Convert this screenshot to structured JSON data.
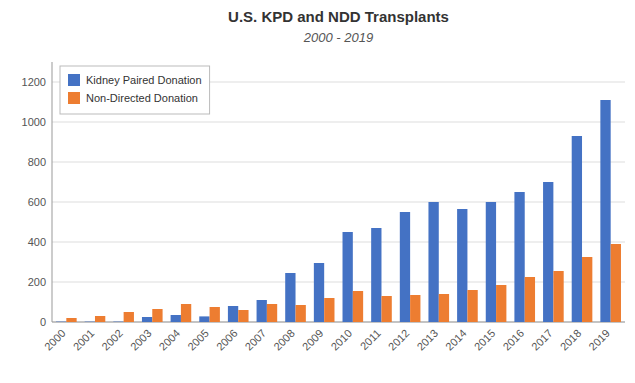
{
  "chart_data": {
    "type": "bar",
    "title": "U.S. KPD and NDD Transplants",
    "subtitle": "2000 - 2019",
    "categories": [
      "2000",
      "2001",
      "2002",
      "2003",
      "2004",
      "2005",
      "2006",
      "2007",
      "2008",
      "2009",
      "2010",
      "2011",
      "2012",
      "2013",
      "2014",
      "2015",
      "2016",
      "2017",
      "2018",
      "2019"
    ],
    "series": [
      {
        "name": "Kidney Paired Donation",
        "color": "#4472C4",
        "values": [
          2,
          2,
          2,
          25,
          35,
          28,
          80,
          110,
          245,
          295,
          450,
          470,
          550,
          600,
          565,
          600,
          650,
          700,
          930,
          1110
        ]
      },
      {
        "name": "Non-Directed Donation",
        "color": "#ED7D31",
        "values": [
          20,
          30,
          50,
          65,
          90,
          75,
          60,
          90,
          85,
          120,
          155,
          130,
          135,
          140,
          160,
          185,
          225,
          255,
          325,
          390
        ]
      }
    ],
    "ylim": [
      0,
      1300
    ],
    "yticks": [
      0,
      200,
      400,
      600,
      800,
      1000,
      1200
    ],
    "grid": true,
    "legend": "upper left"
  }
}
